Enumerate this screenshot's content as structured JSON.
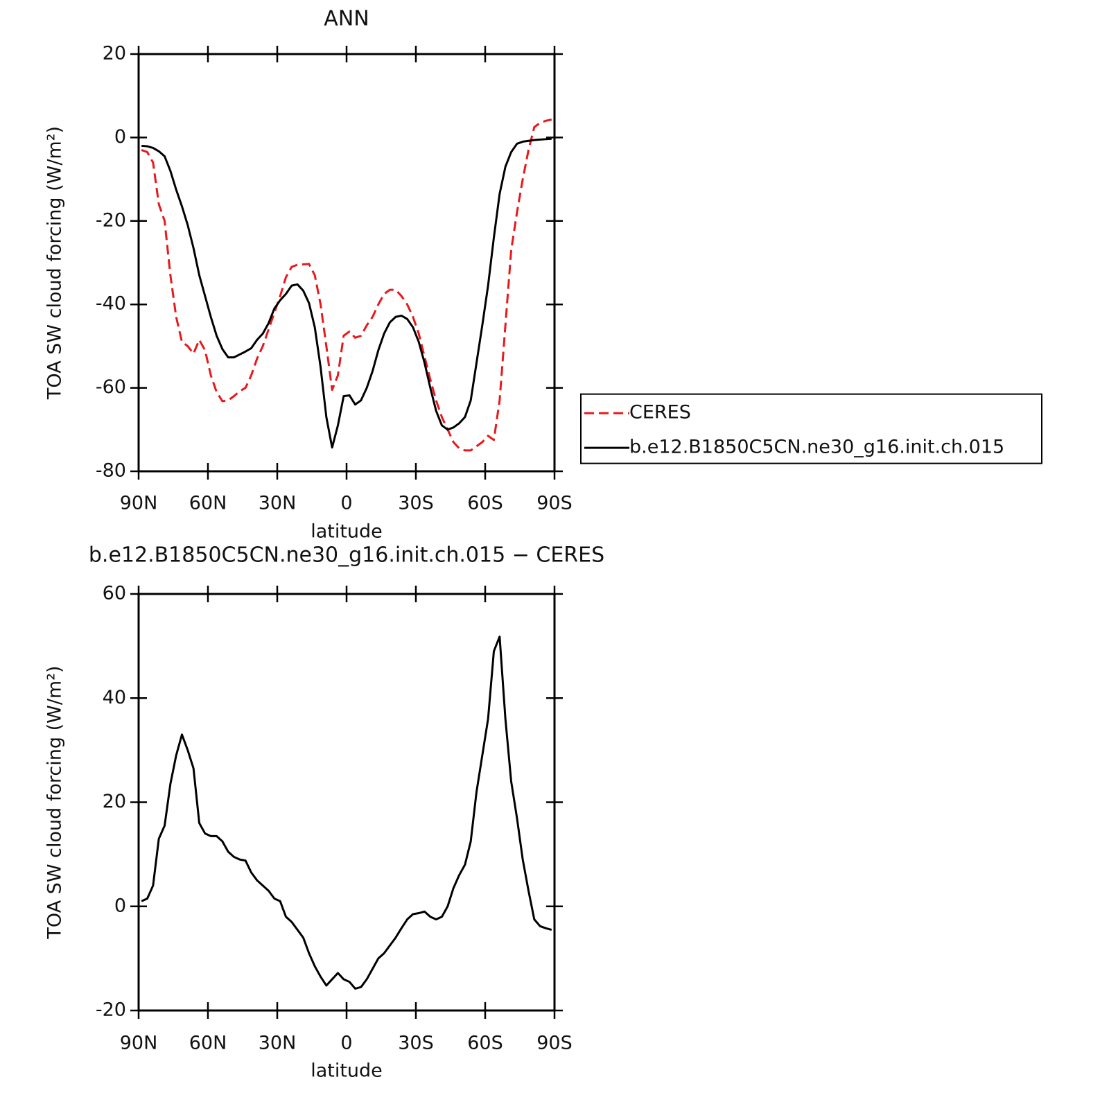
{
  "chart_data": [
    {
      "type": "line",
      "title": "ANN",
      "xlabel": "latitude",
      "ylabel": "TOA SW cloud forcing (W/m²)",
      "x": [
        88.75,
        86.25,
        83.75,
        81.25,
        78.75,
        76.25,
        73.75,
        71.25,
        68.75,
        66.25,
        63.75,
        61.25,
        58.75,
        56.25,
        53.75,
        51.25,
        48.75,
        46.25,
        43.75,
        41.25,
        38.75,
        36.25,
        33.75,
        31.25,
        28.75,
        26.25,
        23.75,
        21.25,
        18.75,
        16.25,
        13.75,
        11.25,
        8.75,
        6.25,
        3.75,
        1.25,
        -1.25,
        -3.75,
        -6.25,
        -8.75,
        -11.25,
        -13.75,
        -16.25,
        -18.75,
        -21.25,
        -23.75,
        -26.25,
        -28.75,
        -31.25,
        -33.75,
        -36.25,
        -38.75,
        -41.25,
        -43.75,
        -46.25,
        -48.75,
        -51.25,
        -53.75,
        -56.25,
        -58.75,
        -61.25,
        -63.75,
        -66.25,
        -68.75,
        -71.25,
        -73.75,
        -76.25,
        -78.75,
        -81.25,
        -83.75,
        -86.25,
        -88.75
      ],
      "series": [
        {
          "name": "CERES",
          "color": "#e8181c",
          "line_style": "dashed",
          "values": [
            -3,
            -3.5,
            -6,
            -16,
            -20,
            -33,
            -43,
            -49,
            -50,
            -51.8,
            -48.5,
            -51,
            -57,
            -61,
            -63.2,
            -63,
            -62,
            -60.8,
            -60,
            -57,
            -53,
            -50,
            -46,
            -42,
            -38,
            -33.5,
            -31,
            -30.5,
            -30.4,
            -30.3,
            -33,
            -40,
            -50,
            -60.5,
            -57,
            -47.5,
            -46.5,
            -48,
            -47.5,
            -45,
            -43,
            -40,
            -37.5,
            -36.5,
            -36.5,
            -38,
            -40,
            -43,
            -47,
            -52.5,
            -58,
            -63,
            -67,
            -70,
            -73,
            -74.5,
            -75,
            -75,
            -74,
            -73,
            -71.5,
            -72.5,
            -63,
            -45,
            -27,
            -18,
            -10,
            -3,
            2.5,
            3.5,
            4,
            4.3
          ]
        },
        {
          "name": "b.e12.B1850C5CN.ne30_g16.init.ch.015",
          "color": "#000000",
          "line_style": "solid",
          "values": [
            -2,
            -2.1,
            -2.5,
            -3.3,
            -4.5,
            -8,
            -12.5,
            -16.5,
            -21,
            -26.5,
            -33,
            -38,
            -43,
            -47.5,
            -50.7,
            -52.7,
            -52.7,
            -52,
            -51.3,
            -50.5,
            -48.5,
            -47,
            -44.5,
            -41,
            -39,
            -37.5,
            -35.5,
            -35.2,
            -36.7,
            -39.7,
            -45.5,
            -55,
            -67,
            -74.3,
            -69,
            -62,
            -61.8,
            -64,
            -63,
            -60,
            -56,
            -51,
            -47,
            -44.3,
            -43,
            -42.7,
            -43.5,
            -45.5,
            -49,
            -54,
            -60,
            -65.5,
            -69,
            -70,
            -69.5,
            -68.5,
            -67,
            -63,
            -54,
            -45,
            -35.5,
            -24,
            -13.5,
            -7,
            -3.5,
            -1.5,
            -1,
            -0.8,
            -0.6,
            -0.5,
            -0.4,
            -0.3
          ]
        }
      ],
      "xlim": [
        90,
        -90
      ],
      "xticks": [
        {
          "value": 90,
          "label": "90N"
        },
        {
          "value": 60,
          "label": "60N"
        },
        {
          "value": 30,
          "label": "30N"
        },
        0,
        {
          "value": -30,
          "label": "30S"
        },
        {
          "value": -60,
          "label": "60S"
        },
        {
          "value": -90,
          "label": "90S"
        }
      ],
      "ylim": [
        -80,
        20
      ],
      "yticks": [
        20,
        0,
        -20,
        -40,
        -60,
        -80
      ],
      "legend": "right"
    },
    {
      "type": "line",
      "title": "b.e12.B1850C5CN.ne30_g16.init.ch.015 − CERES",
      "xlabel": "latitude",
      "ylabel": "TOA SW cloud forcing (W/m²)",
      "x": [
        88.75,
        86.25,
        83.75,
        81.25,
        78.75,
        76.25,
        73.75,
        71.25,
        68.75,
        66.25,
        63.75,
        61.25,
        58.75,
        56.25,
        53.75,
        51.25,
        48.75,
        46.25,
        43.75,
        41.25,
        38.75,
        36.25,
        33.75,
        31.25,
        28.75,
        26.25,
        23.75,
        21.25,
        18.75,
        16.25,
        13.75,
        11.25,
        8.75,
        6.25,
        3.75,
        1.25,
        -1.25,
        -3.75,
        -6.25,
        -8.75,
        -11.25,
        -13.75,
        -16.25,
        -18.75,
        -21.25,
        -23.75,
        -26.25,
        -28.75,
        -31.25,
        -33.75,
        -36.25,
        -38.75,
        -41.25,
        -43.75,
        -46.25,
        -48.75,
        -51.25,
        -53.75,
        -56.25,
        -58.75,
        -61.25,
        -63.75,
        -66.25,
        -68.75,
        -71.25,
        -73.75,
        -76.25,
        -78.75,
        -81.25,
        -83.75,
        -86.25,
        -88.75
      ],
      "values": [
        1,
        1.5,
        4,
        13,
        15.5,
        23.5,
        29,
        33,
        30,
        26.5,
        16,
        14,
        13.5,
        13.5,
        12.5,
        10.5,
        9.5,
        9,
        8.8,
        6.5,
        5,
        4,
        3,
        1.5,
        1,
        -2,
        -3,
        -4.5,
        -6,
        -9,
        -11.5,
        -13.5,
        -15.2,
        -14,
        -12.8,
        -14,
        -14.5,
        -15.8,
        -15.5,
        -14,
        -12,
        -10,
        -9,
        -7.5,
        -6,
        -4.2,
        -2.5,
        -1.5,
        -1.3,
        -1,
        -2,
        -2.5,
        -2,
        0,
        3.5,
        6,
        8,
        12.5,
        22,
        29,
        36,
        49,
        51.8,
        36,
        24,
        17,
        9,
        3,
        -2.5,
        -3.8,
        -4.2,
        -4.5
      ],
      "color": "#000000",
      "line_style": "solid",
      "xlim": [
        90,
        -90
      ],
      "xticks": [
        {
          "value": 90,
          "label": "90N"
        },
        {
          "value": 60,
          "label": "60N"
        },
        {
          "value": 30,
          "label": "30N"
        },
        0,
        {
          "value": -30,
          "label": "30S"
        },
        {
          "value": -60,
          "label": "60S"
        },
        {
          "value": -90,
          "label": "90S"
        }
      ],
      "ylim": [
        -20,
        60
      ],
      "yticks": [
        60,
        40,
        20,
        0,
        -20
      ]
    }
  ]
}
